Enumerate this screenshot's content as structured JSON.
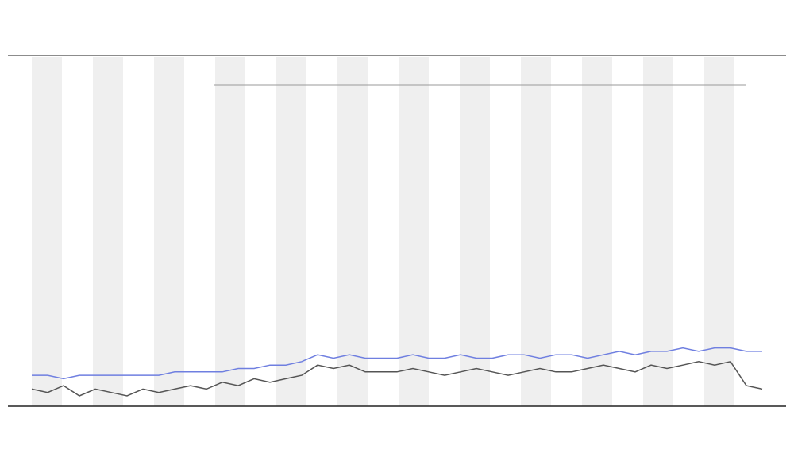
{
  "chart_data": {
    "type": "line",
    "x": [
      0,
      1,
      2,
      3,
      4,
      5,
      6,
      7,
      8,
      9,
      10,
      11,
      12,
      13,
      14,
      15,
      16,
      17,
      18,
      19,
      20,
      21,
      22,
      23,
      24,
      25,
      26,
      27,
      28,
      29,
      30,
      31,
      32,
      33,
      34,
      35,
      36,
      37,
      38,
      39,
      40,
      41,
      42,
      43,
      44,
      45,
      46
    ],
    "xlim": [
      0,
      46
    ],
    "ylim": [
      0,
      100
    ],
    "series": [
      {
        "color": "#555555",
        "values": [
          5,
          4,
          6,
          3,
          5,
          4,
          3,
          5,
          4,
          5,
          6,
          5,
          7,
          6,
          8,
          7,
          8,
          9,
          12,
          11,
          12,
          10,
          10,
          10,
          11,
          10,
          9,
          10,
          11,
          10,
          9,
          10,
          11,
          10,
          10,
          11,
          12,
          11,
          10,
          12,
          11,
          12,
          13,
          12,
          13,
          6,
          5
        ]
      },
      {
        "color": "#6f7fe0",
        "values": [
          9,
          9,
          8,
          9,
          9,
          9,
          9,
          9,
          9,
          10,
          10,
          10,
          10,
          11,
          11,
          12,
          12,
          13,
          15,
          14,
          15,
          14,
          14,
          14,
          15,
          14,
          14,
          15,
          14,
          14,
          15,
          15,
          14,
          15,
          15,
          14,
          15,
          16,
          15,
          16,
          16,
          17,
          16,
          17,
          17,
          16,
          16
        ]
      }
    ]
  }
}
